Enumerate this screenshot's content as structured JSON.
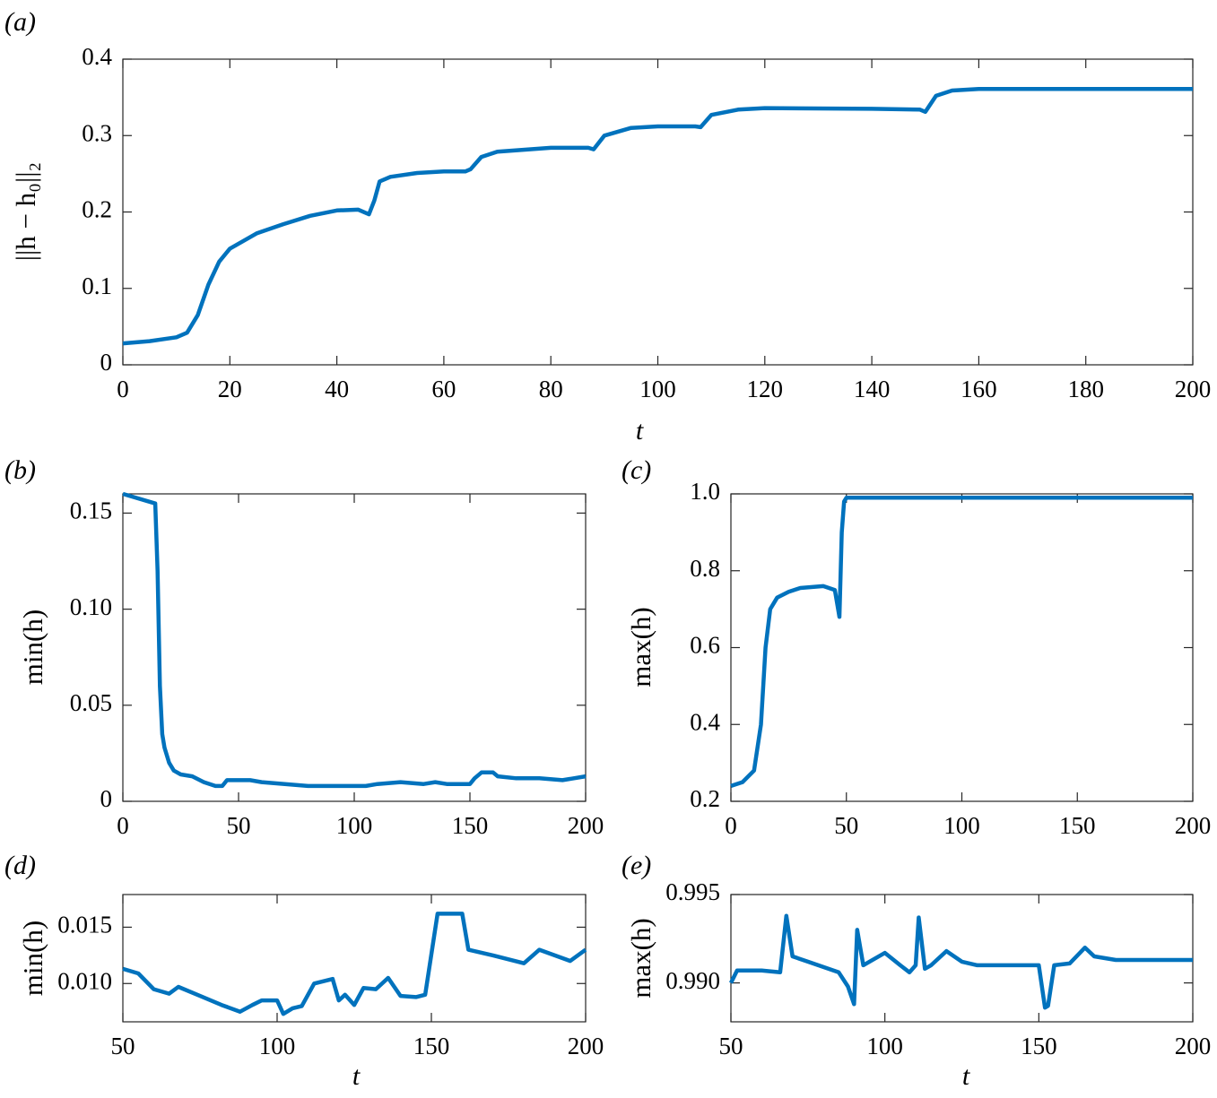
{
  "chart_data": [
    {
      "type": "line",
      "panel_label": "(a)",
      "xlabel": "t",
      "ylabel": "||h − h₀||₂",
      "color": "#0072bd",
      "xlim": [
        0,
        200
      ],
      "ylim": [
        0,
        0.4
      ],
      "xticks": [
        0,
        20,
        40,
        60,
        80,
        100,
        120,
        140,
        160,
        180,
        200
      ],
      "yticks": [
        0,
        0.1,
        0.2,
        0.3,
        0.4
      ],
      "x": [
        0,
        5,
        10,
        12,
        14,
        16,
        18,
        20,
        25,
        30,
        35,
        40,
        44,
        46,
        47,
        48,
        50,
        55,
        60,
        64,
        65,
        67,
        70,
        80,
        87,
        88,
        90,
        95,
        100,
        107,
        108,
        110,
        115,
        120,
        140,
        149,
        150,
        152,
        155,
        160,
        200
      ],
      "values": [
        0.028,
        0.031,
        0.036,
        0.042,
        0.065,
        0.105,
        0.135,
        0.152,
        0.172,
        0.184,
        0.195,
        0.202,
        0.203,
        0.197,
        0.215,
        0.24,
        0.246,
        0.251,
        0.253,
        0.253,
        0.256,
        0.272,
        0.279,
        0.284,
        0.284,
        0.282,
        0.3,
        0.31,
        0.312,
        0.312,
        0.311,
        0.327,
        0.334,
        0.336,
        0.335,
        0.334,
        0.331,
        0.352,
        0.359,
        0.361,
        0.361
      ]
    },
    {
      "type": "line",
      "panel_label": "(b)",
      "ylabel": "min(h)",
      "color": "#0072bd",
      "xlim": [
        0,
        200
      ],
      "ylim": [
        0,
        0.16
      ],
      "xticks": [
        0,
        50,
        100,
        150,
        200
      ],
      "yticks": [
        0,
        0.05,
        {
          "value": 0.1,
          "label": "0.10"
        },
        0.15
      ],
      "x": [
        0,
        14,
        15,
        16,
        17,
        18,
        20,
        22,
        25,
        30,
        35,
        40,
        43,
        45,
        50,
        55,
        60,
        70,
        80,
        90,
        100,
        105,
        110,
        120,
        130,
        135,
        140,
        150,
        152,
        155,
        160,
        162,
        170,
        180,
        190,
        200
      ],
      "values": [
        0.16,
        0.155,
        0.12,
        0.06,
        0.035,
        0.028,
        0.02,
        0.016,
        0.014,
        0.013,
        0.01,
        0.008,
        0.008,
        0.011,
        0.011,
        0.011,
        0.01,
        0.009,
        0.008,
        0.008,
        0.008,
        0.008,
        0.009,
        0.01,
        0.009,
        0.01,
        0.009,
        0.009,
        0.012,
        0.015,
        0.015,
        0.013,
        0.012,
        0.012,
        0.011,
        0.013
      ]
    },
    {
      "type": "line",
      "panel_label": "(c)",
      "ylabel": "max(h)",
      "color": "#0072bd",
      "xlim": [
        0,
        200
      ],
      "ylim": [
        0.2,
        1.0
      ],
      "xticks": [
        0,
        50,
        100,
        150,
        200
      ],
      "yticks": [
        0.2,
        0.4,
        0.6,
        0.8,
        {
          "value": 1.0,
          "label": "1.0"
        }
      ],
      "x": [
        0,
        5,
        10,
        13,
        15,
        17,
        20,
        25,
        30,
        40,
        45,
        47,
        48,
        49,
        50,
        55,
        100,
        200
      ],
      "values": [
        0.24,
        0.25,
        0.28,
        0.4,
        0.6,
        0.7,
        0.73,
        0.745,
        0.755,
        0.76,
        0.75,
        0.68,
        0.9,
        0.98,
        0.99,
        0.99,
        0.99,
        0.99
      ]
    },
    {
      "type": "line",
      "panel_label": "(d)",
      "xlabel": "t",
      "ylabel": "min(h)",
      "color": "#0072bd",
      "xlim": [
        50,
        200
      ],
      "ylim": [
        0.0066,
        0.0179
      ],
      "xticks": [
        50,
        100,
        150,
        200
      ],
      "yticks": [
        {
          "value": 0.01,
          "label": "0.010"
        },
        0.015
      ],
      "x": [
        50,
        55,
        60,
        65,
        68,
        75,
        82,
        88,
        92,
        95,
        100,
        102,
        105,
        108,
        112,
        118,
        120,
        122,
        125,
        128,
        132,
        136,
        140,
        145,
        148,
        152,
        155,
        160,
        162,
        170,
        180,
        185,
        195,
        200
      ],
      "values": [
        0.0113,
        0.0109,
        0.0095,
        0.0091,
        0.0097,
        0.0089,
        0.0081,
        0.0075,
        0.0081,
        0.0085,
        0.0085,
        0.0073,
        0.0078,
        0.008,
        0.01,
        0.0104,
        0.0085,
        0.009,
        0.0081,
        0.0096,
        0.0095,
        0.0105,
        0.0089,
        0.0088,
        0.009,
        0.0162,
        0.0162,
        0.0162,
        0.013,
        0.0125,
        0.0118,
        0.013,
        0.012,
        0.013
      ]
    },
    {
      "type": "line",
      "panel_label": "(e)",
      "xlabel": "t",
      "ylabel": "max(h)",
      "color": "#0072bd",
      "xlim": [
        50,
        200
      ],
      "ylim": [
        0.9878,
        0.995
      ],
      "xticks": [
        50,
        100,
        150,
        200
      ],
      "yticks": [
        {
          "value": 0.99,
          "label": "0.990"
        },
        0.995
      ],
      "x": [
        50,
        52,
        60,
        66,
        68,
        70,
        75,
        85,
        88,
        90,
        91,
        93,
        95,
        100,
        105,
        108,
        110,
        111,
        113,
        115,
        120,
        125,
        130,
        150,
        152,
        153,
        155,
        160,
        165,
        168,
        175,
        200
      ],
      "values": [
        0.99,
        0.9907,
        0.9907,
        0.9906,
        0.9938,
        0.9915,
        0.9912,
        0.9906,
        0.9898,
        0.9888,
        0.993,
        0.991,
        0.9912,
        0.9917,
        0.991,
        0.9906,
        0.991,
        0.9937,
        0.9908,
        0.991,
        0.9918,
        0.9912,
        0.991,
        0.991,
        0.9886,
        0.9887,
        0.991,
        0.9911,
        0.992,
        0.9915,
        0.9913,
        0.9913
      ]
    }
  ]
}
